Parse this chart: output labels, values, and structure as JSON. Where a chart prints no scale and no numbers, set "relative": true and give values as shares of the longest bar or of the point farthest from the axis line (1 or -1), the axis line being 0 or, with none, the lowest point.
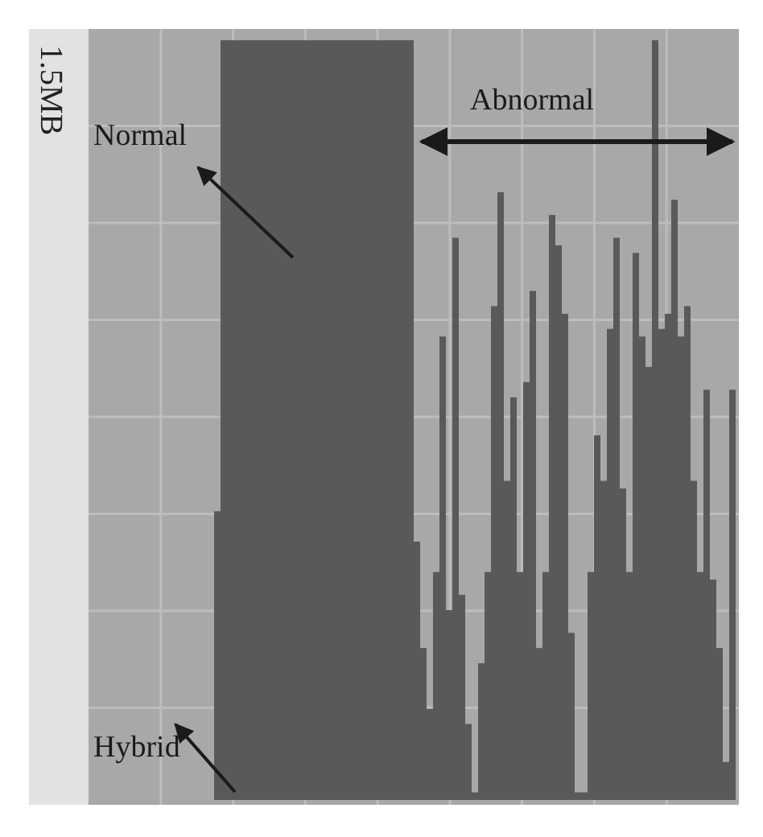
{
  "chart_data": {
    "type": "bar",
    "relative": true,
    "ylabel": "1.5MB",
    "grid": true,
    "color": "#595959",
    "annotations": [
      "Normal",
      "Abnormal",
      "Hybrid"
    ],
    "categories": [
      null,
      null,
      null,
      null,
      null,
      null,
      null,
      null,
      null,
      null,
      null,
      null,
      null,
      null,
      null,
      null,
      null,
      null,
      null,
      null,
      null,
      null,
      null,
      null,
      null,
      null,
      null,
      null,
      null,
      null,
      null,
      null,
      null,
      null,
      null,
      null,
      null,
      null,
      null,
      null,
      null,
      null,
      null,
      null,
      null,
      null,
      null,
      null,
      null,
      null,
      null,
      null,
      null,
      null,
      null,
      null,
      null,
      null,
      null,
      null,
      null,
      null,
      null,
      null,
      null,
      null,
      null,
      null,
      null,
      null,
      null,
      null,
      null,
      null,
      null,
      null,
      null,
      null,
      null,
      null,
      null
    ],
    "values": [
      0.38,
      1,
      1,
      1,
      1,
      1,
      1,
      1,
      1,
      1,
      1,
      1,
      1,
      1,
      1,
      1,
      1,
      1,
      1,
      1,
      1,
      1,
      1,
      1,
      1,
      1,
      1,
      1,
      1,
      1,
      1,
      0.34,
      0.2,
      0.12,
      0.3,
      0.61,
      0.25,
      0.74,
      0.27,
      0.1,
      0.01,
      0.18,
      0.3,
      0.65,
      0.8,
      0.42,
      0.53,
      0.3,
      0.55,
      0.67,
      0.2,
      0.3,
      0.77,
      0.73,
      0.64,
      0.22,
      0.01,
      0.01,
      0.3,
      0.48,
      0.42,
      0.62,
      0.74,
      0.41,
      0.3,
      0.72,
      0.61,
      0.57,
      1.0,
      0.62,
      0.64,
      0.79,
      0.61,
      0.65,
      0.42,
      0.3,
      0.54,
      0.29,
      0.2,
      0.05,
      0.54
    ]
  }
}
